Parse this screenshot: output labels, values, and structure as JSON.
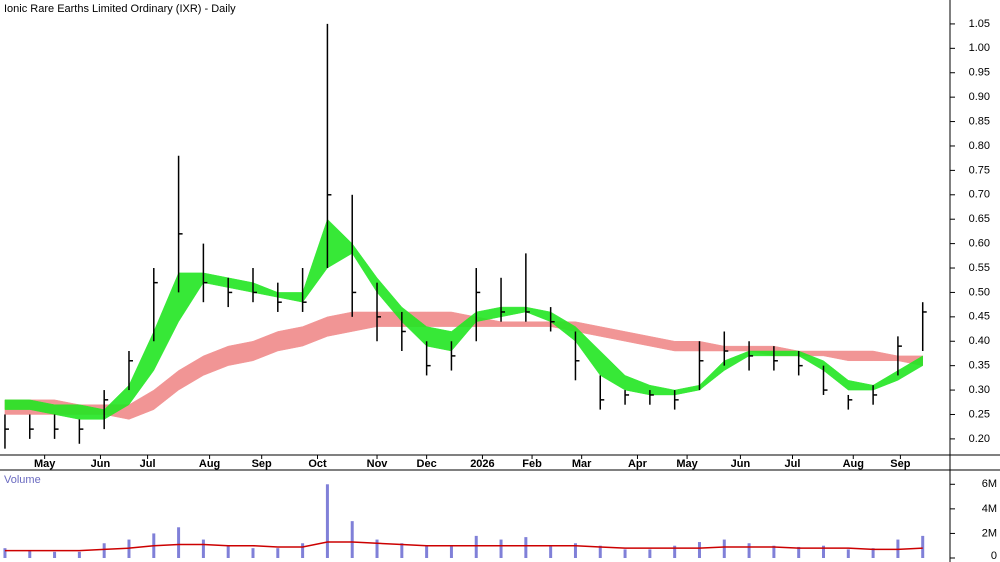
{
  "chart_data": [
    {
      "type": "ohlc",
      "title": "Ionic Rare Earths Limited Ordinary (IXR) - Daily",
      "x": [
        0,
        2,
        4,
        6,
        8,
        10,
        12,
        14,
        16,
        18,
        20,
        22,
        24,
        26,
        28,
        30,
        32,
        34,
        36,
        38,
        40,
        42,
        44,
        46,
        48,
        50,
        52,
        54,
        56,
        58,
        60,
        62,
        64,
        66,
        68,
        70,
        72,
        74
      ],
      "high": [
        0.25,
        0.25,
        0.25,
        0.24,
        0.3,
        0.38,
        0.55,
        0.78,
        0.6,
        0.53,
        0.55,
        0.52,
        0.55,
        1.05,
        0.7,
        0.52,
        0.46,
        0.4,
        0.4,
        0.55,
        0.53,
        0.58,
        0.47,
        0.42,
        0.33,
        0.3,
        0.3,
        0.3,
        0.4,
        0.42,
        0.4,
        0.39,
        0.38,
        0.35,
        0.29,
        0.31,
        0.41,
        0.48
      ],
      "low": [
        0.18,
        0.2,
        0.2,
        0.19,
        0.22,
        0.3,
        0.4,
        0.5,
        0.48,
        0.47,
        0.48,
        0.46,
        0.46,
        0.55,
        0.45,
        0.4,
        0.38,
        0.33,
        0.34,
        0.4,
        0.44,
        0.44,
        0.42,
        0.32,
        0.26,
        0.27,
        0.27,
        0.26,
        0.3,
        0.35,
        0.34,
        0.34,
        0.33,
        0.29,
        0.26,
        0.27,
        0.33,
        0.38
      ],
      "close": [
        0.22,
        0.22,
        0.22,
        0.22,
        0.28,
        0.36,
        0.52,
        0.62,
        0.52,
        0.5,
        0.5,
        0.48,
        0.48,
        0.7,
        0.5,
        0.45,
        0.42,
        0.35,
        0.37,
        0.5,
        0.46,
        0.46,
        0.44,
        0.36,
        0.28,
        0.29,
        0.29,
        0.28,
        0.36,
        0.38,
        0.37,
        0.36,
        0.35,
        0.3,
        0.28,
        0.29,
        0.39,
        0.46
      ],
      "bands": [
        {
          "color": "#f08a8a",
          "upper": [
            0.28,
            0.28,
            0.28,
            0.27,
            0.27,
            0.27,
            0.3,
            0.34,
            0.37,
            0.39,
            0.4,
            0.42,
            0.43,
            0.45,
            0.46,
            0.46,
            0.46,
            0.46,
            0.46,
            0.45,
            0.44,
            0.44,
            0.44,
            0.44,
            0.43,
            0.42,
            0.41,
            0.4,
            0.4,
            0.39,
            0.39,
            0.39,
            0.38,
            0.38,
            0.38,
            0.38,
            0.37,
            0.37
          ],
          "lower": [
            0.25,
            0.25,
            0.25,
            0.25,
            0.25,
            0.24,
            0.26,
            0.3,
            0.33,
            0.35,
            0.36,
            0.38,
            0.39,
            0.41,
            0.42,
            0.43,
            0.43,
            0.43,
            0.43,
            0.43,
            0.43,
            0.43,
            0.43,
            0.42,
            0.41,
            0.4,
            0.39,
            0.38,
            0.38,
            0.38,
            0.38,
            0.37,
            0.37,
            0.37,
            0.36,
            0.36,
            0.36,
            0.35
          ]
        },
        {
          "color": "#22e622",
          "upper": [
            0.28,
            0.28,
            0.27,
            0.27,
            0.26,
            0.31,
            0.42,
            0.54,
            0.54,
            0.53,
            0.52,
            0.5,
            0.5,
            0.65,
            0.6,
            0.53,
            0.47,
            0.43,
            0.42,
            0.46,
            0.47,
            0.47,
            0.46,
            0.43,
            0.38,
            0.33,
            0.31,
            0.3,
            0.31,
            0.36,
            0.38,
            0.38,
            0.38,
            0.36,
            0.32,
            0.31,
            0.34,
            0.37
          ],
          "lower": [
            0.26,
            0.26,
            0.25,
            0.24,
            0.24,
            0.27,
            0.34,
            0.44,
            0.52,
            0.51,
            0.5,
            0.49,
            0.48,
            0.55,
            0.58,
            0.5,
            0.44,
            0.39,
            0.38,
            0.44,
            0.45,
            0.46,
            0.44,
            0.4,
            0.33,
            0.3,
            0.29,
            0.29,
            0.3,
            0.34,
            0.37,
            0.37,
            0.37,
            0.34,
            0.3,
            0.3,
            0.32,
            0.35
          ]
        }
      ],
      "xlim": [
        -0.4,
        76.2
      ],
      "xticks": [
        {
          "value": 3.2,
          "label": "May"
        },
        {
          "value": 7.7,
          "label": "Jun"
        },
        {
          "value": 11.5,
          "label": "Jul"
        },
        {
          "value": 16.5,
          "label": "Aug"
        },
        {
          "value": 20.7,
          "label": "Sep"
        },
        {
          "value": 25.2,
          "label": "Oct"
        },
        {
          "value": 30,
          "label": "Nov"
        },
        {
          "value": 34,
          "label": "Dec"
        },
        {
          "value": 38.5,
          "label": "2026"
        },
        {
          "value": 42.5,
          "label": "Feb"
        },
        {
          "value": 46.5,
          "label": "Mar"
        },
        {
          "value": 51,
          "label": "Apr"
        },
        {
          "value": 55,
          "label": "May"
        },
        {
          "value": 59.3,
          "label": "Jun"
        },
        {
          "value": 63.5,
          "label": "Jul"
        },
        {
          "value": 68.4,
          "label": "Aug"
        },
        {
          "value": 72.2,
          "label": "Sep"
        }
      ],
      "ylim": [
        0.167,
        1.099
      ],
      "yticks": [
        {
          "value": 0.2,
          "label": "0.20"
        },
        0.25,
        {
          "value": 0.3,
          "label": "0.30"
        },
        0.35,
        {
          "value": 0.4,
          "label": "0.40"
        },
        0.45,
        {
          "value": 0.5,
          "label": "0.50"
        },
        0.55,
        {
          "value": 0.6,
          "label": "0.60"
        },
        0.65,
        {
          "value": 0.7,
          "label": "0.70"
        },
        0.75,
        {
          "value": 0.8,
          "label": "0.80"
        },
        0.85,
        {
          "value": 0.9,
          "label": "0.90"
        },
        0.95,
        {
          "value": 1.0,
          "label": "1.00"
        },
        1.05
      ]
    },
    {
      "type": "bar",
      "title": "Volume",
      "color": "#8080d8",
      "values": [
        800000,
        600000,
        500000,
        500000,
        1200000,
        1500000,
        2000000,
        2500000,
        1500000,
        1000000,
        800000,
        800000,
        1200000,
        6000000,
        3000000,
        1500000,
        1200000,
        1000000,
        1000000,
        1800000,
        1500000,
        1700000,
        1000000,
        1200000,
        1000000,
        700000,
        700000,
        1000000,
        1300000,
        1500000,
        1200000,
        1000000,
        900000,
        1000000,
        700000,
        800000,
        1500000,
        1800000
      ],
      "ma": {
        "color": "#cc0000",
        "values": [
          600000,
          600000,
          600000,
          600000,
          700000,
          800000,
          1000000,
          1100000,
          1100000,
          1000000,
          1000000,
          900000,
          900000,
          1300000,
          1300000,
          1200000,
          1100000,
          1000000,
          1000000,
          1000000,
          1000000,
          1000000,
          1000000,
          1000000,
          900000,
          800000,
          800000,
          800000,
          800000,
          900000,
          900000,
          900000,
          800000,
          800000,
          800000,
          700000,
          700000,
          800000
        ]
      },
      "ylim": [
        0,
        7000000
      ],
      "yticks": [
        0,
        {
          "value": 2000000,
          "label": "2M"
        },
        {
          "value": 4000000,
          "label": "4M"
        },
        {
          "value": 6000000,
          "label": "6M"
        }
      ]
    }
  ]
}
